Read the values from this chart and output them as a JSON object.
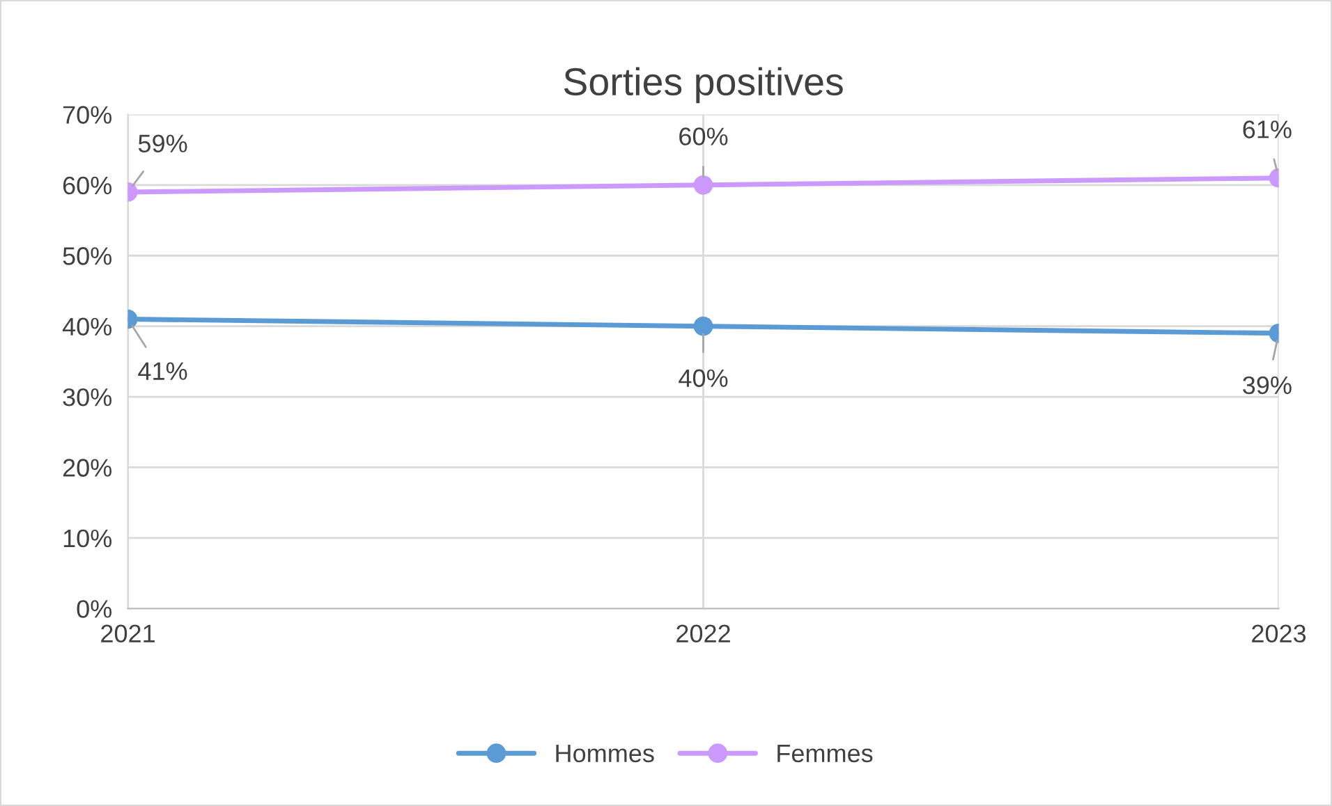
{
  "chart_data": {
    "type": "line",
    "title": "Sorties positives",
    "x": [
      2021,
      2022,
      2023
    ],
    "xlim": [
      2021,
      2023
    ],
    "xticks": [
      2021,
      2022,
      2023
    ],
    "ylim": [
      0,
      70
    ],
    "yticks": [
      {
        "value": 0,
        "label": "0%"
      },
      {
        "value": 10,
        "label": "10%"
      },
      {
        "value": 20,
        "label": "20%"
      },
      {
        "value": 30,
        "label": "30%"
      },
      {
        "value": 40,
        "label": "40%"
      },
      {
        "value": 50,
        "label": "50%"
      },
      {
        "value": 60,
        "label": "60%"
      },
      {
        "value": 70,
        "label": "70%"
      }
    ],
    "series": [
      {
        "name": "Hommes",
        "color": "#5b9bd5",
        "values": [
          41,
          40,
          39
        ],
        "value_labels": [
          "41%",
          "40%",
          "39%"
        ]
      },
      {
        "name": "Femmes",
        "color": "#cc99ff",
        "values": [
          59,
          60,
          61
        ],
        "value_labels": [
          "59%",
          "60%",
          "61%"
        ]
      }
    ],
    "grid": true,
    "legend": "bottom",
    "marker": "circle",
    "line_style": "solid"
  }
}
